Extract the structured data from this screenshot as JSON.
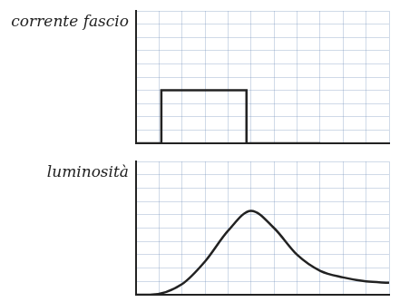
{
  "chart_data": [
    {
      "type": "line",
      "y_label": "corrente fascio",
      "x": [
        0,
        1.1,
        1.1,
        4.8,
        4.8,
        8
      ],
      "values": [
        0,
        0,
        4,
        4,
        0,
        0
      ],
      "color": "#222222",
      "xlim": [
        0,
        11
      ],
      "xticks": [
        0,
        1,
        2,
        3,
        4,
        5,
        6,
        7,
        8,
        9,
        10,
        11
      ],
      "ylim": [
        0,
        10
      ],
      "yticks": [
        0,
        1,
        2,
        3,
        4,
        5,
        6,
        7,
        8,
        9,
        10
      ],
      "grid": true,
      "tick_labels": false
    },
    {
      "type": "line",
      "y_label": "luminosità",
      "x": [
        0,
        0.6,
        2,
        3,
        4,
        5,
        6,
        7,
        8,
        9,
        10,
        11
      ],
      "values": [
        0,
        0,
        0.8,
        2.5,
        4.8,
        6.3,
        5,
        3,
        1.8,
        1.3,
        1,
        0.9
      ],
      "color": "#222222",
      "xlim": [
        0,
        11
      ],
      "xticks": [
        0,
        1,
        2,
        3,
        4,
        5,
        6,
        7,
        8,
        9,
        10,
        11
      ],
      "ylim": [
        0,
        10
      ],
      "yticks": [
        0,
        1,
        2,
        3,
        4,
        5,
        6,
        7,
        8,
        9,
        10
      ],
      "grid": true,
      "tick_labels": false
    }
  ]
}
